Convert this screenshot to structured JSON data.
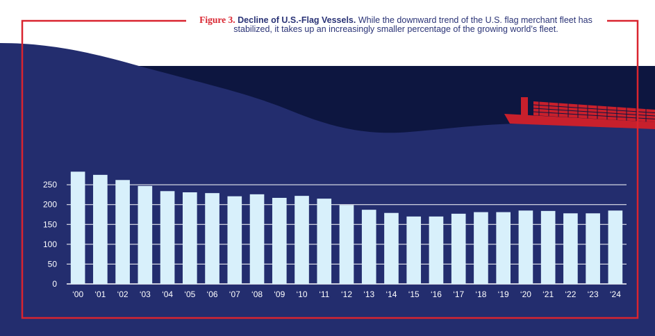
{
  "caption": {
    "figure_label": "Figure 3.",
    "heading": "Decline of U.S.-Flag Vessels.",
    "text": "While the downward trend of the U.S. flag merchant fleet has stabilized, it takes up an increasingly smaller percentage of the growing world’s fleet."
  },
  "colors": {
    "background_navy": "#232d6e",
    "wave_dark": "#0d1640",
    "bar_fill": "#d8f0fb",
    "frame_red": "#d9242f",
    "ship_red": "#c8202c"
  },
  "chart_data": {
    "type": "bar",
    "title": "",
    "xlabel": "",
    "ylabel": "",
    "categories": [
      "‘00",
      "‘01",
      "‘02",
      "‘03",
      "‘04",
      "‘05",
      "‘06",
      "‘07",
      "‘08",
      "‘09",
      "‘10",
      "‘11",
      "‘12",
      "‘13",
      "‘14",
      "‘15",
      "‘16",
      "‘17",
      "‘18",
      "‘19",
      "‘20",
      "‘21",
      "‘22",
      "‘23",
      "‘24"
    ],
    "values": [
      283,
      275,
      262,
      247,
      234,
      231,
      229,
      221,
      226,
      217,
      222,
      215,
      199,
      187,
      179,
      170,
      170,
      177,
      181,
      181,
      185,
      184,
      178,
      178,
      185
    ],
    "ylim": [
      0,
      280
    ],
    "yticks": [
      0,
      50,
      100,
      150,
      200,
      250
    ],
    "ytick_labels": [
      "0",
      "50",
      "100",
      "150",
      "200",
      "250"
    ],
    "grid": true
  }
}
